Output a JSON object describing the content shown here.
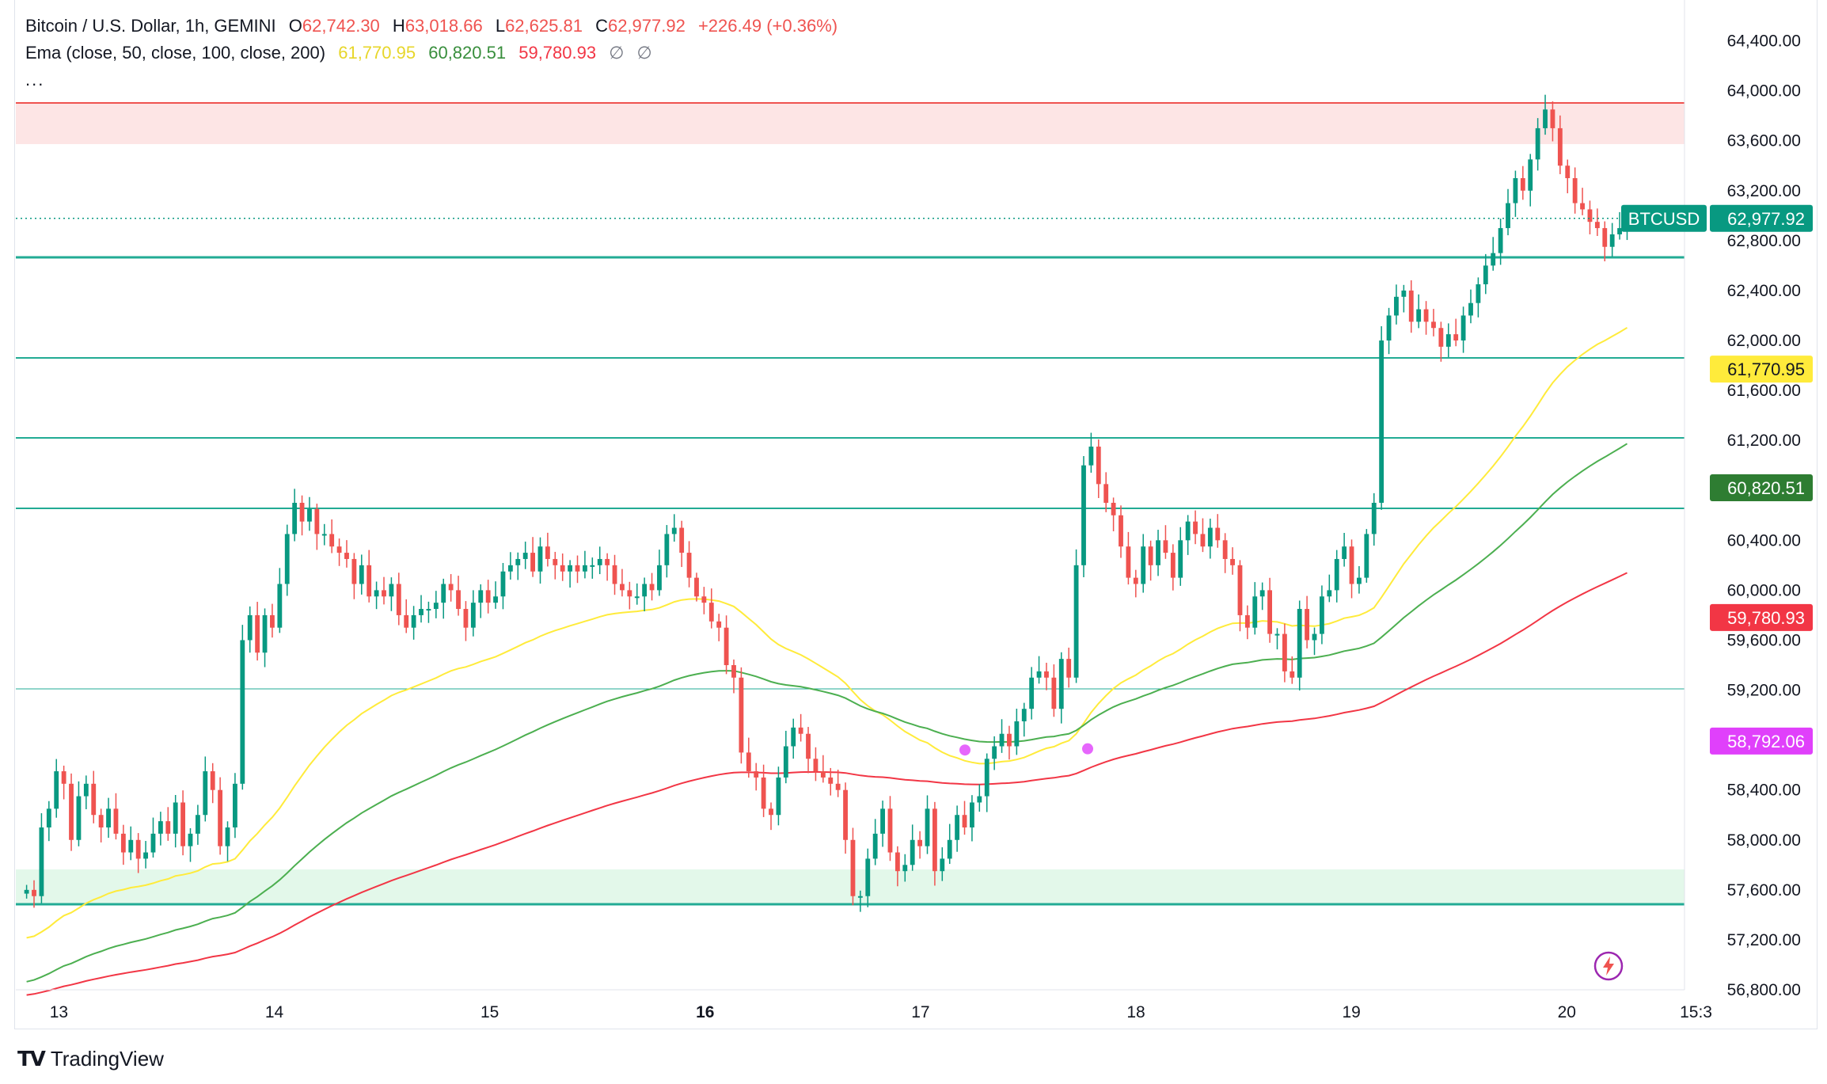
{
  "header": {
    "symbol_title": "Bitcoin / U.S. Dollar, 1h, GEMINI",
    "open_label": "O",
    "open": "62,742.30",
    "high_label": "H",
    "high": "63,018.66",
    "low_label": "L",
    "low": "62,625.81",
    "close_label": "C",
    "close": "62,977.92",
    "change": "+226.49 (+0.36%)",
    "indicator": "Ema (close, 50, close, 100, close, 200)",
    "ema50": "61,770.95",
    "ema100": "60,820.51",
    "ema200": "59,780.93",
    "empty1": "∅",
    "empty2": "∅",
    "more": "..."
  },
  "branding": {
    "name": "TradingView"
  },
  "colors": {
    "up": "#089981",
    "down": "#ef5350",
    "ema50": "#ffeb3b",
    "ema100": "#388e3c",
    "ema200": "#f23645",
    "level": "#22ab94",
    "resistance_fill": "#fde5e5",
    "support_fill": "#e3f8ea",
    "marker": "#e040fb",
    "bolt": "#9c27b0"
  },
  "chart_data": {
    "type": "candlestick",
    "symbol": "BTCUSD",
    "timeframe": "1h",
    "ylim": [
      56800,
      64600
    ],
    "y_ticks": [
      56800,
      57200,
      57600,
      58000,
      58400,
      58800,
      59200,
      59600,
      60000,
      60400,
      60800,
      61200,
      61600,
      62000,
      62400,
      62800,
      63200,
      63600,
      64000,
      64400
    ],
    "y_tick_labels": [
      "56,800.00",
      "57,200.00",
      "57,600.00",
      "58,000.00",
      "58,400.00",
      "58,800.00",
      "59,200.00",
      "59,600.00",
      "60,000.00",
      "60,400.00",
      "60,800.00",
      "61,200.00",
      "61,600.00",
      "62,000.00",
      "62,400.00",
      "62,800.00",
      "63,200.00",
      "63,600.00",
      "64,000.00",
      "64,400.00"
    ],
    "x_ticks": [
      {
        "day": 13,
        "label": "13",
        "bold": false
      },
      {
        "day": 14,
        "label": "14",
        "bold": false
      },
      {
        "day": 15,
        "label": "15",
        "bold": false
      },
      {
        "day": 16,
        "label": "16",
        "bold": true
      },
      {
        "day": 17,
        "label": "17",
        "bold": false
      },
      {
        "day": 18,
        "label": "18",
        "bold": false
      },
      {
        "day": 19,
        "label": "19",
        "bold": false
      },
      {
        "day": 20,
        "label": "20",
        "bold": false
      },
      {
        "day": 20.6,
        "label": "15:3",
        "bold": false
      }
    ],
    "x_range": [
      12.8,
      20.62
    ],
    "candles_close": [
      57600,
      57550,
      58100,
      58250,
      58550,
      58450,
      58000,
      58350,
      58450,
      58200,
      58100,
      58250,
      58050,
      57900,
      58000,
      57850,
      57900,
      58050,
      58150,
      58050,
      58300,
      57950,
      58050,
      58200,
      58550,
      58400,
      57950,
      58100,
      58450,
      59600,
      59800,
      59500,
      59800,
      59700,
      60050,
      60450,
      60700,
      60550,
      60650,
      60450,
      60450,
      60350,
      60300,
      60250,
      60050,
      60200,
      59950,
      60000,
      59950,
      60050,
      59800,
      59700,
      59800,
      59850,
      59850,
      59900,
      60050,
      60000,
      59850,
      59700,
      59900,
      60000,
      59900,
      59950,
      60150,
      60200,
      60250,
      60300,
      60150,
      60350,
      60250,
      60200,
      60150,
      60200,
      60150,
      60200,
      60200,
      60250,
      60200,
      60050,
      60000,
      59950,
      59950,
      60050,
      60000,
      60200,
      60450,
      60500,
      60300,
      60100,
      59950,
      59900,
      59750,
      59700,
      59400,
      59300,
      58700,
      58550,
      58500,
      58250,
      58200,
      58500,
      58750,
      58900,
      58850,
      58650,
      58550,
      58500,
      58450,
      58400,
      58000,
      57550,
      57550,
      57850,
      58050,
      58250,
      57900,
      57750,
      57800,
      58000,
      57950,
      58250,
      57750,
      57850,
      58000,
      58200,
      58100,
      58300,
      58350,
      58650,
      58750,
      58850,
      58750,
      58950,
      59050,
      59300,
      59350,
      59300,
      59050,
      59450,
      59300,
      60200,
      61000,
      61150,
      60850,
      60700,
      60600,
      60350,
      60100,
      60050,
      60350,
      60200,
      60400,
      60300,
      60100,
      60400,
      60550,
      60450,
      60350,
      60500,
      60400,
      60250,
      60200,
      59800,
      59700,
      59950,
      60000,
      59650,
      59650,
      59350,
      59300,
      59850,
      59600,
      59650,
      59950,
      60000,
      60250,
      60350,
      60050,
      60100,
      60450,
      60700,
      62000,
      62200,
      62350,
      62400,
      62150,
      62250,
      62150,
      62100,
      61950,
      62050,
      62000,
      62200,
      62300,
      62450,
      62600,
      62700,
      62900,
      63100,
      63300,
      63200,
      63450,
      63700,
      63850,
      63700,
      63400,
      63300,
      63100,
      63050,
      62950,
      62900,
      62750,
      62850,
      62900,
      62977
    ]
  }
}
